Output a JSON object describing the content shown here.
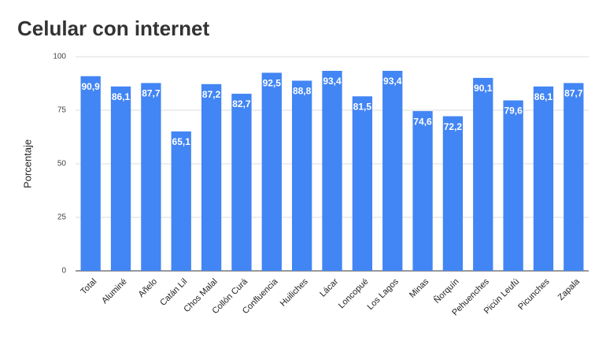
{
  "chart_data": {
    "type": "bar",
    "title": "Celular con internet",
    "y_label": "Porcentaje",
    "categories": [
      "Total",
      "Aluminé",
      "Añelo",
      "Catán Lil",
      "Chos Malal",
      "Collón Curá",
      "Confluencia",
      "Huiliches",
      "Lácar",
      "Loncopué",
      "Los Lagos",
      "Minas",
      "Ñorquín",
      "Pehuenches",
      "Picún Leufú",
      "Picunches",
      "Zapala"
    ],
    "values": [
      90.9,
      86.1,
      87.7,
      65.1,
      87.2,
      82.7,
      92.5,
      88.8,
      93.4,
      81.5,
      93.4,
      74.6,
      72.2,
      90.1,
      79.6,
      86.1,
      87.7
    ],
    "value_labels": [
      "90,9",
      "86,1",
      "87,7",
      "65,1",
      "87,2",
      "82,7",
      "92,5",
      "88,8",
      "93,4",
      "81,5",
      "93,4",
      "74,6",
      "72,2",
      "90,1",
      "79,6",
      "86,1",
      "87,7"
    ],
    "color": "#4285f4",
    "ylim": [
      0,
      100
    ],
    "yticks": [
      0,
      25,
      50,
      75,
      100
    ],
    "grid": true
  }
}
